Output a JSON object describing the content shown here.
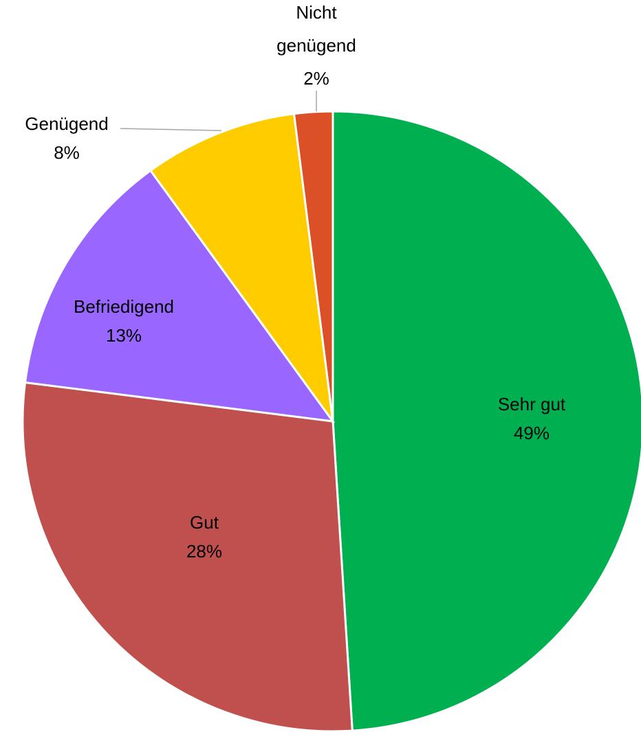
{
  "chart_data": {
    "type": "pie",
    "categories": [
      "Sehr gut",
      "Gut",
      "Befriedigend",
      "Genügend",
      "Nicht genügend"
    ],
    "values": [
      49,
      28,
      13,
      8,
      2
    ],
    "value_labels": [
      "49%",
      "28%",
      "13%",
      "8%",
      "2%"
    ],
    "colors": [
      "#00b050",
      "#c0504d",
      "#9966ff",
      "#ffcc00",
      "#dc5027"
    ]
  }
}
